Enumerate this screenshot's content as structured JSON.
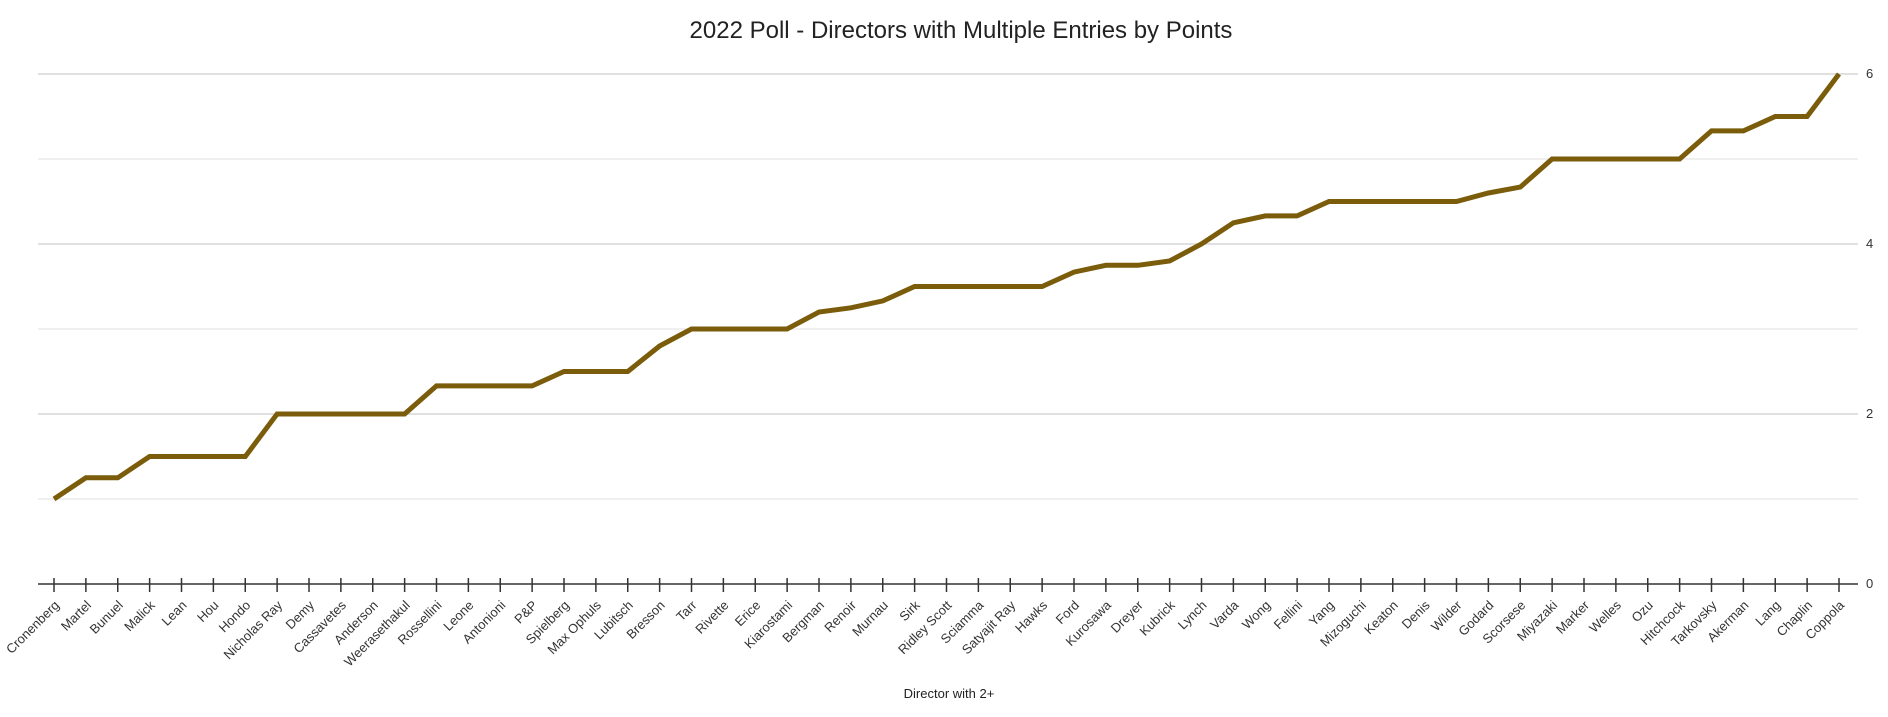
{
  "chart_data": {
    "type": "line",
    "title": "2022 Poll - Directors with Multiple Entries by Points",
    "xlabel": "Director with 2+",
    "ylabel": "",
    "ylim": [
      0,
      6
    ],
    "yticks": [
      "0",
      "2",
      "4",
      "6"
    ],
    "grid": true,
    "y_axis_side": "right",
    "color": "#7a5c0a",
    "categories": [
      "Cronenberg",
      "Martel",
      "Bunuel",
      "Malick",
      "Lean",
      "Hou",
      "Hondo",
      "Nicholas Ray",
      "Demy",
      "Cassavetes",
      "Anderson",
      "Weerasethakul",
      "Rossellini",
      "Leone",
      "Antonioni",
      "P&P",
      "Spielberg",
      "Max Ophuls",
      "Lubitsch",
      "Bresson",
      "Tarr",
      "Rivette",
      "Erice",
      "Kiarostami",
      "Bergman",
      "Renoir",
      "Murnau",
      "Sirk",
      "Ridley Scott",
      "Sciamma",
      "Satyajit Ray",
      "Hawks",
      "Ford",
      "Kurosawa",
      "Dreyer",
      "Kubrick",
      "Lynch",
      "Varda",
      "Wong",
      "Fellini",
      "Yang",
      "Mizoguchi",
      "Keaton",
      "Denis",
      "Wilder",
      "Godard",
      "Scorsese",
      "Miyazaki",
      "Marker",
      "Welles",
      "Ozu",
      "Hitchcock",
      "Tarkovsky",
      "Akerman",
      "Lang",
      "Chaplin",
      "Coppola"
    ],
    "values": [
      1,
      1.25,
      1.25,
      1.5,
      1.5,
      1.5,
      1.5,
      2,
      2,
      2,
      2,
      2,
      2.33,
      2.33,
      2.33,
      2.33,
      2.5,
      2.5,
      2.5,
      2.8,
      3,
      3,
      3,
      3,
      3.2,
      3.25,
      3.33,
      3.5,
      3.5,
      3.5,
      3.5,
      3.5,
      3.67,
      3.75,
      3.75,
      3.8,
      4,
      4.25,
      4.33,
      4.33,
      4.5,
      4.5,
      4.5,
      4.5,
      4.5,
      4.6,
      4.67,
      5,
      5,
      5,
      5,
      5,
      5.33,
      5.33,
      5.5,
      5.5,
      6
    ]
  }
}
